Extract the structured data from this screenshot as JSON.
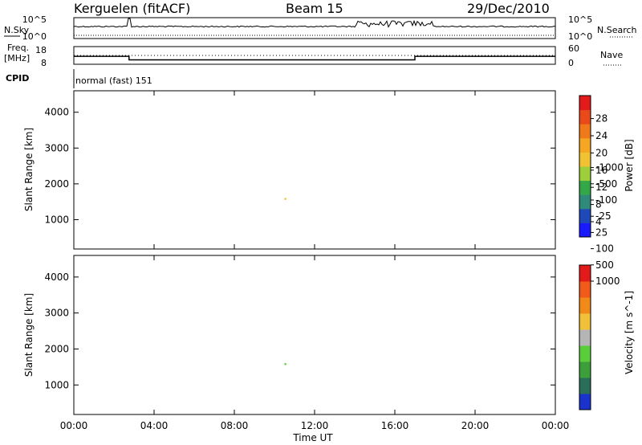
{
  "header": {
    "station": "Kerguelen (fitACF)",
    "beam": "Beam 15",
    "date": "29/Dec/2010"
  },
  "panel_labels": {
    "nsky": "N.Sky",
    "nsearch": "N.Search",
    "freq_line1": "Freq.",
    "freq_line2": "[MHz]",
    "nave": "Nave",
    "cpid": "CPID",
    "cpid_value": "normal (fast) 151"
  },
  "chart_data": [
    {
      "type": "line",
      "name": "noise",
      "y_left_ticks": [
        "10^5",
        "10^0"
      ],
      "y_right_ticks": [
        "10^5",
        "10^0"
      ],
      "series": [
        {
          "name": "N.Sky",
          "style": "solid",
          "level": "~10^0 with spikes near 02:40 and 14:00–18:00"
        },
        {
          "name": "N.Search",
          "style": "dotted"
        }
      ]
    },
    {
      "type": "line",
      "name": "frequency-nave",
      "y_left_ticks": [
        "18",
        "8"
      ],
      "y_right_ticks": [
        "60",
        "0"
      ],
      "freq_steps": [
        {
          "from_hour": 0,
          "to_hour": 2.75,
          "mhz": 12.5
        },
        {
          "from_hour": 2.75,
          "to_hour": 17.0,
          "mhz": 10.5
        },
        {
          "from_hour": 17.0,
          "to_hour": 24,
          "mhz": 12.5
        }
      ],
      "nave_approx": 30
    },
    {
      "type": "heatmap",
      "name": "power",
      "ylabel": "Slant Range [km]",
      "yticks": [
        1000,
        2000,
        3000,
        4000
      ],
      "ylim": [
        180,
        4600
      ],
      "xlim": [
        0,
        24
      ],
      "colorbar": {
        "label": "Power [dB]",
        "ticks": [
          "4",
          "8",
          "12",
          "16",
          "20",
          "24",
          "28"
        ],
        "colors": [
          "#1a1aff",
          "#1f49b8",
          "#2f8a7a",
          "#33a849",
          "#9dcf3a",
          "#f1c232",
          "#f5a623",
          "#f07a1a",
          "#ea4a1a",
          "#e21a1a"
        ]
      }
    },
    {
      "type": "heatmap",
      "name": "velocity",
      "ylabel": "Slant Range [km]",
      "yticks": [
        1000,
        2000,
        3000,
        4000
      ],
      "ylim": [
        180,
        4600
      ],
      "xlim": [
        0,
        24
      ],
      "xticks": [
        "00:00",
        "04:00",
        "08:00",
        "12:00",
        "16:00",
        "20:00",
        "00:00"
      ],
      "xlabel": "Time UT",
      "colorbar": {
        "label": "Velocity [m s^-1]",
        "ticks": [
          "1000",
          "500",
          "100",
          "25",
          "-25",
          "-100",
          "-500",
          "-1000"
        ],
        "colors": [
          "#1a33cc",
          "#2a6e5a",
          "#3d9f3a",
          "#5acd3a",
          "#b5b5b5",
          "#f2c13a",
          "#f28a1a",
          "#f25a1a",
          "#e21a1a"
        ]
      }
    }
  ]
}
